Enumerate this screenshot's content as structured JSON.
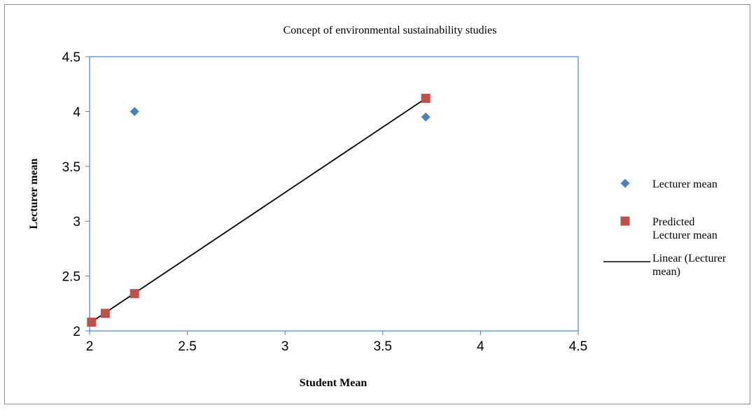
{
  "chart_data": {
    "type": "scatter",
    "title": "Concept of environmental sustainability studies",
    "xlabel": "Student Mean",
    "ylabel": "Lecturer  mean",
    "xlim": [
      2,
      4.5
    ],
    "ylim": [
      2,
      4.5
    ],
    "x_ticks": [
      "2",
      "2.5",
      "3",
      "3.5",
      "4",
      "4.5"
    ],
    "y_ticks": [
      "2",
      "2.5",
      "3",
      "3.5",
      "4",
      "4.5"
    ],
    "grid": false,
    "legend_position": "right",
    "series": [
      {
        "name": "Lecturer  mean",
        "marker": "diamond",
        "color": "#4f81bd",
        "points": [
          [
            2.23,
            4.0
          ],
          [
            3.72,
            3.95
          ]
        ]
      },
      {
        "name": "Predicted Lecturer  mean",
        "marker": "square",
        "color": "#c0504d",
        "points": [
          [
            2.01,
            2.08
          ],
          [
            2.08,
            2.16
          ],
          [
            2.23,
            2.34
          ],
          [
            3.72,
            4.12
          ]
        ]
      }
    ],
    "trendline": {
      "name": "Linear (Lecturer mean)",
      "color": "#000000",
      "from": [
        2.0,
        2.07
      ],
      "to": [
        3.72,
        4.12
      ]
    },
    "legend": [
      {
        "lines": [
          "Lecturer  mean"
        ],
        "symbol": "diamond",
        "color": "#4f81bd"
      },
      {
        "lines": [
          "Predicted",
          "Lecturer  mean"
        ],
        "symbol": "square",
        "color": "#c0504d"
      },
      {
        "lines": [
          "Linear (Lecturer",
          "mean)"
        ],
        "symbol": "line",
        "color": "#000000"
      }
    ]
  }
}
